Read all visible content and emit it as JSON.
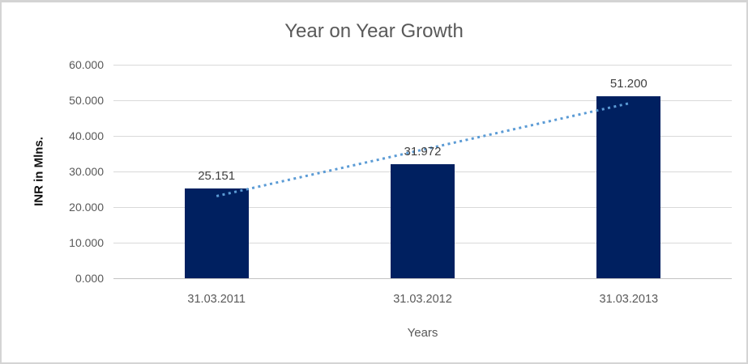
{
  "chart_data": {
    "type": "bar",
    "title": "Year on Year Growth",
    "ylabel": "INR in Mlns.",
    "xlabel": "Years",
    "categories": [
      "31.03.2011",
      "31.03.2012",
      "31.03.2013"
    ],
    "values": [
      25.151,
      31.972,
      51.2
    ],
    "value_labels": [
      "25.151",
      "31.972",
      "51.200"
    ],
    "ylim": [
      0,
      60
    ],
    "ytick_labels": [
      "60.000",
      "50.000",
      "40.000",
      "30.000",
      "20.000",
      "10.000",
      "0.000"
    ],
    "grid": true,
    "legend": "none",
    "trendline": {
      "type": "linear",
      "style": "dotted"
    },
    "colors": {
      "bar": "#002060",
      "trendline": "#5B9BD5",
      "gridline": "#d9d9d9",
      "title_text": "#595959",
      "axis_text": "#595959",
      "data_label_text": "#3f3f3f"
    }
  }
}
